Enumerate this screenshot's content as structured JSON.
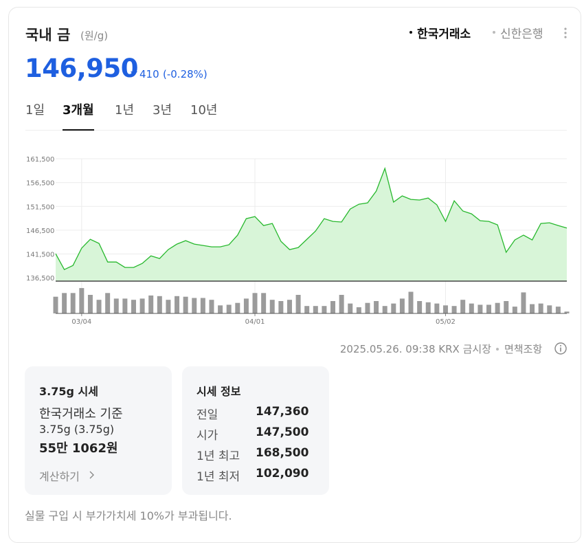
{
  "header": {
    "title": "국내 금",
    "unit": "(원/g)",
    "sources": [
      "한국거래소",
      "신한은행"
    ],
    "price": "146,950",
    "change": "410",
    "change_pct": "(-0.28%)"
  },
  "periods": [
    "1일",
    "3개월",
    "1년",
    "3년",
    "10년"
  ],
  "selected_period": 1,
  "chart_data": {
    "type": "line",
    "categories": [
      null,
      null,
      null,
      "03/04",
      null,
      null,
      null,
      null,
      null,
      null,
      null,
      null,
      null,
      null,
      null,
      null,
      null,
      null,
      null,
      null,
      null,
      null,
      null,
      "04/01",
      null,
      null,
      null,
      null,
      null,
      null,
      null,
      null,
      null,
      null,
      null,
      null,
      null,
      null,
      null,
      null,
      null,
      null,
      null,
      null,
      null,
      "05/02",
      null,
      null,
      null,
      null,
      null,
      null,
      null,
      null,
      null,
      null,
      null,
      null,
      null,
      null
    ],
    "series": [
      {
        "color": "#27b82d",
        "fill": "#d8f5d8",
        "values": [
          141560,
          138230,
          139090,
          142710,
          144590,
          143720,
          139820,
          139820,
          138670,
          138670,
          139530,
          141120,
          140550,
          142420,
          143580,
          144300,
          143580,
          143290,
          143000,
          143000,
          143440,
          145460,
          148930,
          149360,
          147480,
          147920,
          144160,
          142420,
          142860,
          144590,
          146330,
          148930,
          148350,
          148210,
          150950,
          151960,
          152250,
          154710,
          159480,
          152400,
          153700,
          152970,
          152830,
          153260,
          151820,
          148350,
          152680,
          150520,
          149940,
          148490,
          148350,
          147630,
          141850,
          144450,
          145460,
          144450,
          147920,
          148060,
          147480,
          146950
        ]
      },
      {
        "type": "bar",
        "axis": "y2",
        "color": "#9b9b9b",
        "values": [
          27,
          33,
          33,
          41,
          30,
          22,
          33,
          24,
          24,
          22,
          24,
          29,
          28,
          22,
          28,
          27,
          25,
          25,
          22,
          13,
          14,
          17,
          24,
          33,
          33,
          22,
          20,
          22,
          30,
          12,
          12,
          12,
          20,
          30,
          16,
          10,
          17,
          20,
          12,
          16,
          24,
          35,
          20,
          18,
          16,
          13,
          12,
          22,
          16,
          14,
          14,
          17,
          20,
          11,
          34,
          15,
          16,
          13,
          11,
          3
        ]
      }
    ],
    "ylim": [
      135800,
      161500
    ],
    "yticks": [
      {
        "value": 136500,
        "label": "136,500"
      },
      {
        "value": 141500,
        "label": "141,500"
      },
      {
        "value": 146500,
        "label": "146,500"
      },
      {
        "value": 151500,
        "label": "151,500"
      },
      {
        "value": 156500,
        "label": "156,500"
      },
      {
        "value": 161500,
        "label": "161,500"
      }
    ],
    "y2lim": [
      0,
      50
    ],
    "grid": true
  },
  "footer": {
    "timestamp": "2025.05.26. 09:38 KRX 금시장",
    "disclaimer": "면책조항"
  },
  "card_375": {
    "title": "3.75g 시세",
    "basis": "한국거래소 기준",
    "weight": "3.75g (3.75g)",
    "price": "55만 1062원",
    "link": "계산하기"
  },
  "info": {
    "title": "시세 정보",
    "rows": [
      [
        "전일",
        "147,360"
      ],
      [
        "시가",
        "147,500"
      ],
      [
        "1년 최고",
        "168,500"
      ],
      [
        "1년 최저",
        "102,090"
      ]
    ]
  },
  "note": "실물 구입 시 부가가치세 10%가 부과됩니다."
}
